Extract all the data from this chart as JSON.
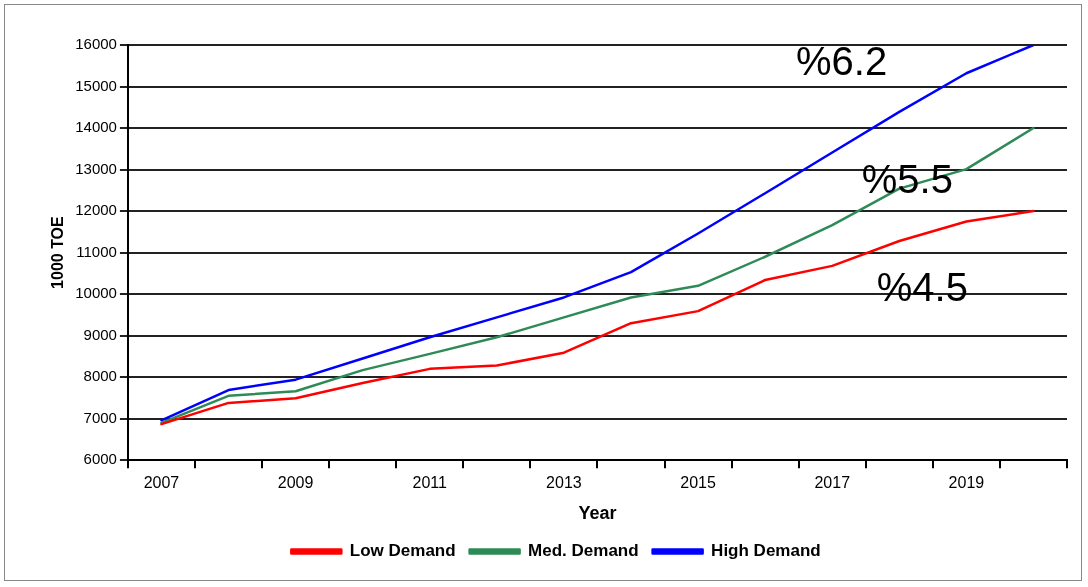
{
  "chart_data": {
    "type": "line",
    "xlabel": "Year",
    "ylabel": "1000 TOE",
    "categories": [
      "2007",
      null,
      "2009",
      null,
      "2011",
      null,
      "2013",
      null,
      "2015",
      null,
      "2017",
      null,
      "2019",
      null
    ],
    "series": [
      {
        "name": "Low Demand",
        "color": "#ff0000",
        "values": [
          6870,
          7380,
          7490,
          7860,
          8200,
          8280,
          8590,
          9300,
          9590,
          10340,
          10680,
          11280,
          11750,
          12000
        ]
      },
      {
        "name": "Med. Demand",
        "color": "#2e8b57",
        "values": [
          6900,
          7550,
          7660,
          8170,
          8560,
          8960,
          9440,
          9920,
          10200,
          10900,
          11660,
          12540,
          13010,
          14000
        ]
      },
      {
        "name": "High Demand",
        "color": "#0000ff",
        "values": [
          6960,
          7690,
          7940,
          8450,
          8960,
          9440,
          9920,
          10530,
          11460,
          12430,
          13410,
          14390,
          15320,
          16000
        ]
      }
    ],
    "ylim": [
      6000,
      16000
    ],
    "yticks": [
      6000,
      7000,
      8000,
      9000,
      10000,
      11000,
      12000,
      13000,
      14000,
      15000,
      16000
    ],
    "grid": "y",
    "legend": "bottom",
    "marker": "none",
    "line_style": "solid",
    "annotations": [
      "%6.2",
      "%5.5",
      "%4.5"
    ]
  }
}
